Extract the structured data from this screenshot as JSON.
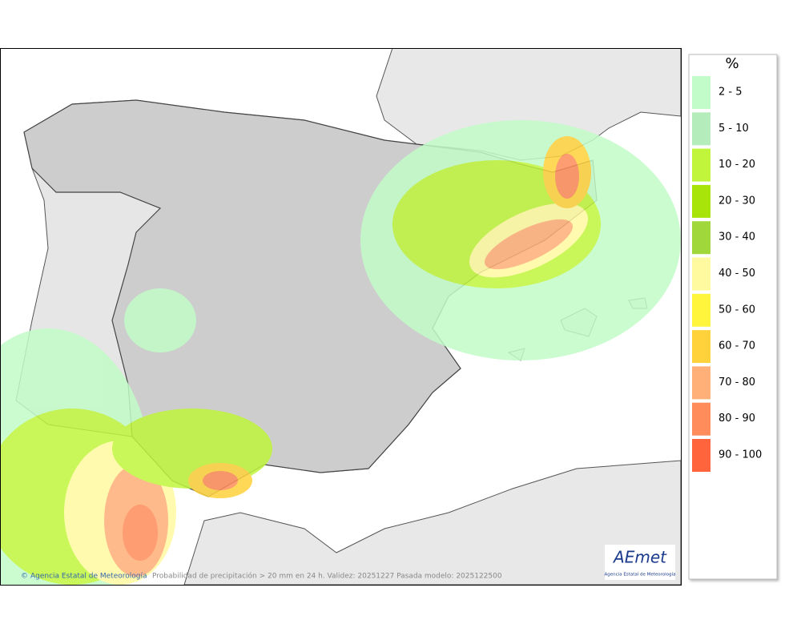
{
  "map": {
    "credit": "Agencia Estatal de Meteorología",
    "caption": "Probabilidad de precipitación > 20 mm en 24 h. Validez: 20251227 Pasada modelo: 2025122500",
    "logo": {
      "name": "AEmet",
      "subtitle": "Agencia Estatal de Meteorología"
    }
  },
  "legend": {
    "title": "%",
    "items": [
      {
        "label": "2 - 5",
        "color": "#c2fcc8"
      },
      {
        "label": "5 - 10",
        "color": "#b4ecbc"
      },
      {
        "label": "10 - 20",
        "color": "#c0f53c"
      },
      {
        "label": "20 - 30",
        "color": "#a8e30a"
      },
      {
        "label": "30 - 40",
        "color": "#a0d83c"
      },
      {
        "label": "40 - 50",
        "color": "#fffaa0"
      },
      {
        "label": "50 - 60",
        "color": "#fff53c"
      },
      {
        "label": "60 - 70",
        "color": "#ffd23c"
      },
      {
        "label": "70 - 80",
        "color": "#ffaf78"
      },
      {
        "label": "80 - 90",
        "color": "#ff8c5a"
      },
      {
        "label": "90 - 100",
        "color": "#ff643c"
      }
    ]
  }
}
